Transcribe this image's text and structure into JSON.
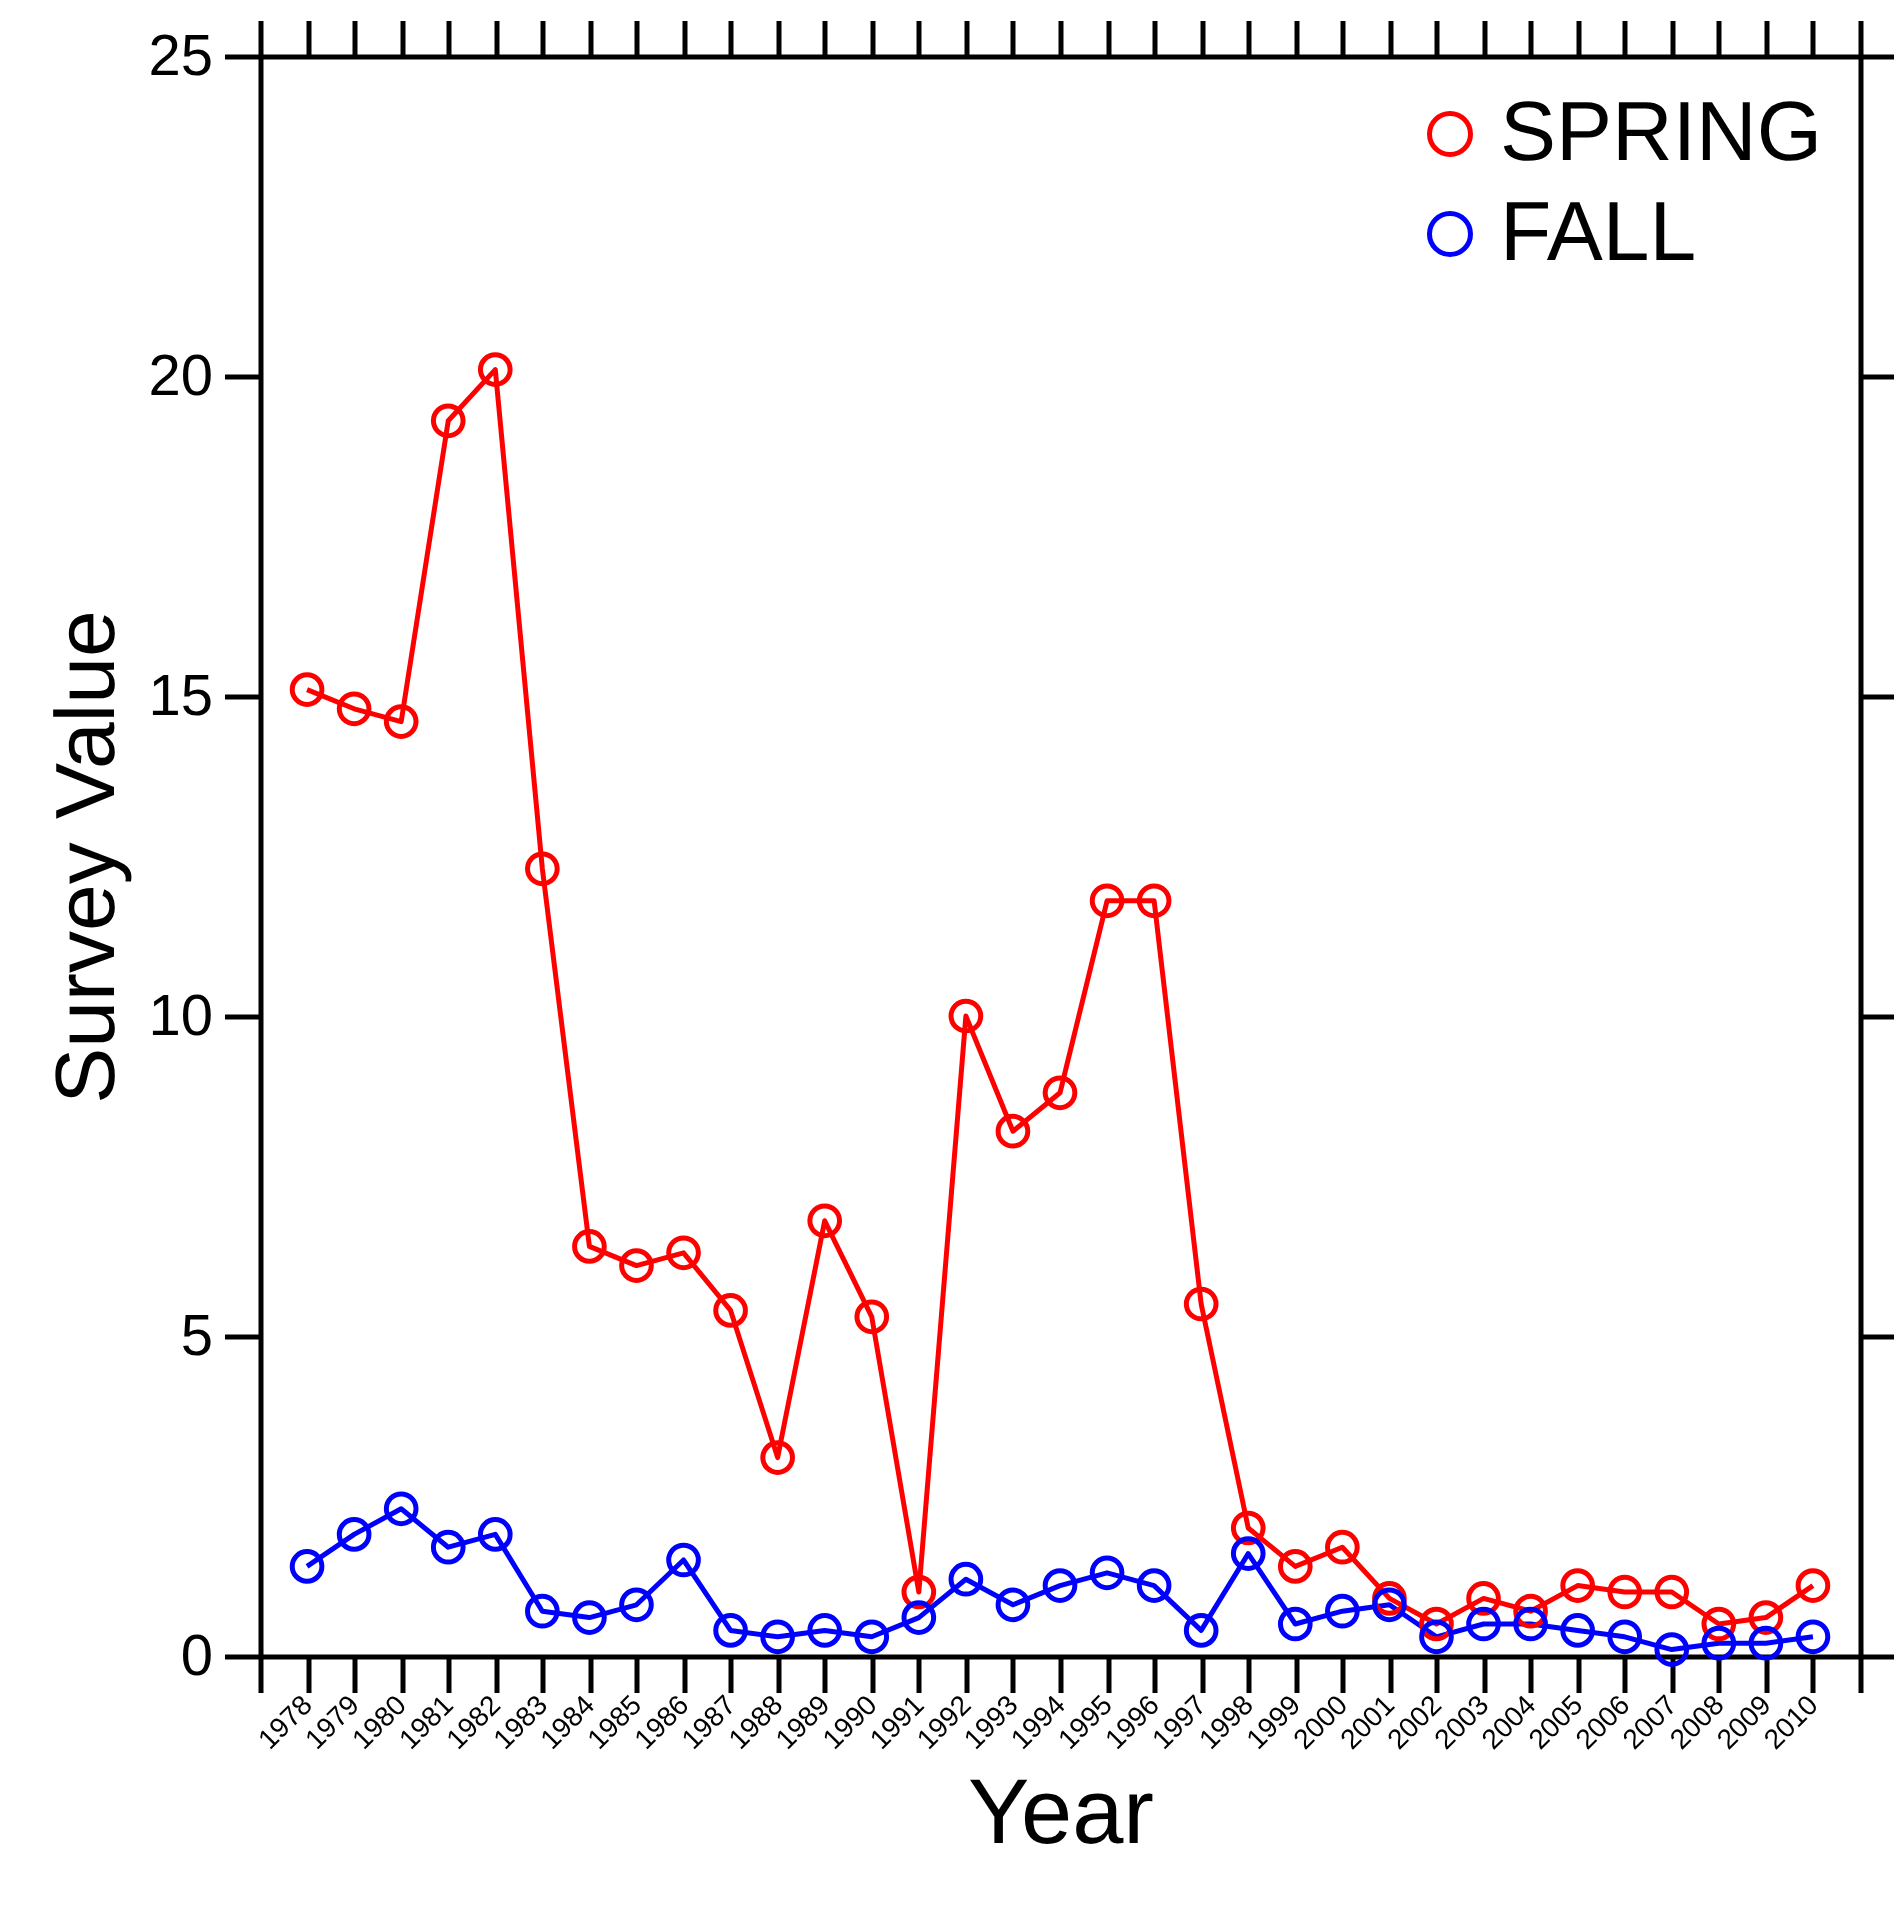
{
  "chart_data": {
    "type": "line",
    "xlabel": "Year",
    "ylabel": "Survey Value",
    "x": [
      1978,
      1979,
      1980,
      1981,
      1982,
      1983,
      1984,
      1985,
      1986,
      1987,
      1988,
      1989,
      1990,
      1991,
      1992,
      1993,
      1994,
      1995,
      1996,
      1997,
      1998,
      1999,
      2000,
      2001,
      2002,
      2003,
      2004,
      2005,
      2006,
      2007,
      2008,
      2009,
      2010
    ],
    "series": [
      {
        "name": "SPRING",
        "color": "#ff0000",
        "values": [
          15.1,
          14.8,
          14.6,
          19.3,
          20.1,
          12.3,
          6.4,
          6.1,
          6.3,
          5.4,
          3.1,
          6.8,
          5.3,
          1.0,
          10.0,
          8.2,
          8.8,
          11.8,
          11.8,
          5.5,
          2.0,
          1.4,
          1.7,
          0.9,
          0.5,
          0.9,
          0.7,
          1.1,
          1.0,
          1.0,
          0.5,
          0.6,
          1.1
        ]
      },
      {
        "name": "FALL",
        "color": "#0000ff",
        "values": [
          1.4,
          1.9,
          2.3,
          1.7,
          1.9,
          0.7,
          0.6,
          0.8,
          1.5,
          0.4,
          0.3,
          0.4,
          0.3,
          0.6,
          1.2,
          0.8,
          1.1,
          1.3,
          1.1,
          0.4,
          1.6,
          0.5,
          0.7,
          0.8,
          0.3,
          0.5,
          0.5,
          0.4,
          0.3,
          0.1,
          0.2,
          0.2,
          0.3
        ]
      }
    ],
    "xlim": [
      1977,
      2011
    ],
    "xticks": [
      {
        "value": 1977,
        "label": null
      },
      1978,
      1979,
      1980,
      1981,
      1982,
      1983,
      1984,
      1985,
      1986,
      1987,
      1988,
      1989,
      1990,
      1991,
      1992,
      1993,
      1994,
      1995,
      1996,
      1997,
      1998,
      1999,
      2000,
      2001,
      2002,
      2003,
      2004,
      2005,
      2006,
      2007,
      2008,
      2009,
      2010,
      {
        "value": 2011,
        "label": null
      }
    ],
    "ylim": [
      0,
      25
    ],
    "yticks": [
      0,
      5,
      10,
      15,
      20,
      25
    ],
    "marker": "circle",
    "line_style": "solid",
    "legend": "top right",
    "grid": false
  }
}
